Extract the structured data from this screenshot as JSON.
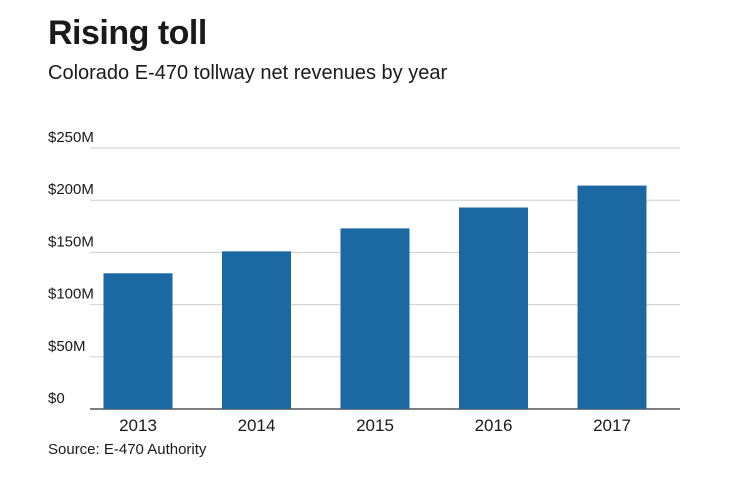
{
  "chart_data": {
    "type": "bar",
    "title": "Rising toll",
    "subtitle": "Colorado E-470 tollway net revenues by year",
    "source": "Source: E-470 Authority",
    "categories": [
      "2013",
      "2014",
      "2015",
      "2016",
      "2017"
    ],
    "values": [
      130,
      151,
      173,
      193,
      214
    ],
    "ylim": [
      0,
      250
    ],
    "yticks": [
      0,
      50,
      100,
      150,
      200,
      250
    ],
    "ytick_labels": [
      "$0",
      "$50M",
      "$100M",
      "$150M",
      "$200M",
      "$250M"
    ],
    "xlabel": "",
    "ylabel": "",
    "grid": true,
    "colors": {
      "bar": "#1c68a3",
      "grid": "#cfcfcf",
      "axis": "#555555"
    }
  }
}
